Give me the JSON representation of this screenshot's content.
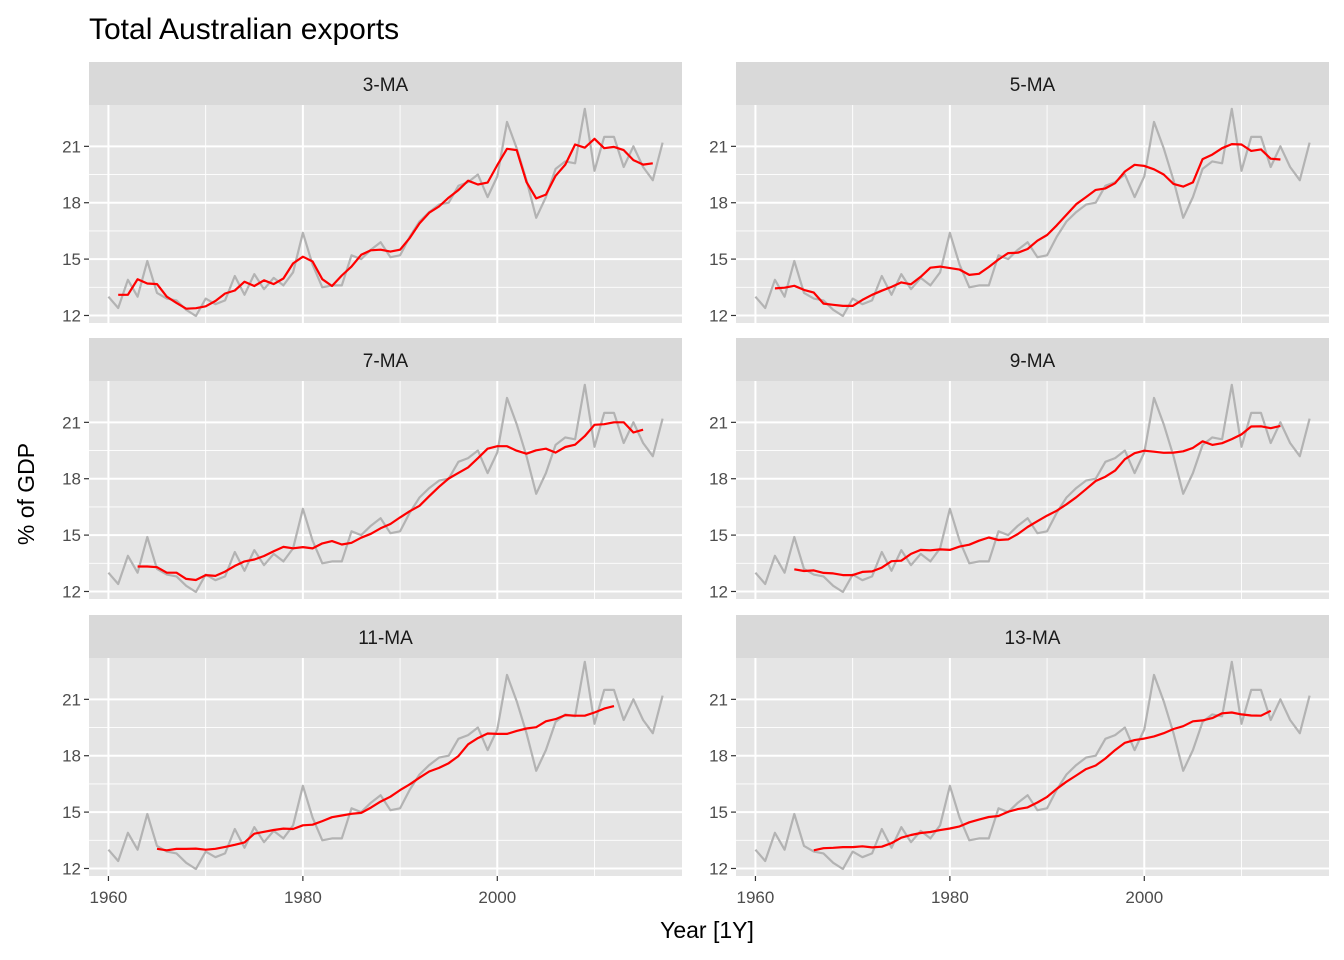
{
  "chart_data": {
    "type": "line",
    "title": "Total Australian exports",
    "xlabel": "Year [1Y]",
    "ylabel": "% of GDP",
    "xlim": [
      1958,
      2019
    ],
    "ylim": [
      11.6,
      23.2
    ],
    "x_ticks": [
      1960,
      1980,
      2000
    ],
    "y_ticks": [
      12,
      15,
      18,
      21
    ],
    "colors": {
      "exports": "#b3b3b3",
      "ma": "#ff0000",
      "panel": "#e5e5e5",
      "strip": "#d9d9d9",
      "grid": "#ffffff"
    },
    "exports": {
      "x": [
        1960,
        1961,
        1962,
        1963,
        1964,
        1965,
        1966,
        1967,
        1968,
        1969,
        1970,
        1971,
        1972,
        1973,
        1974,
        1975,
        1976,
        1977,
        1978,
        1979,
        1980,
        1981,
        1982,
        1983,
        1984,
        1985,
        1986,
        1987,
        1988,
        1989,
        1990,
        1991,
        1992,
        1993,
        1994,
        1995,
        1996,
        1997,
        1998,
        1999,
        2000,
        2001,
        2002,
        2003,
        2004,
        2005,
        2006,
        2007,
        2008,
        2009,
        2010,
        2011,
        2012,
        2013,
        2014,
        2015,
        2016,
        2017
      ],
      "values": [
        13.0,
        12.4,
        13.9,
        13.0,
        14.9,
        13.2,
        12.9,
        12.8,
        12.3,
        11.97,
        12.9,
        12.6,
        12.8,
        14.1,
        13.1,
        14.2,
        13.4,
        14.0,
        13.6,
        14.3,
        16.4,
        14.7,
        13.5,
        13.6,
        13.6,
        15.2,
        15.0,
        15.5,
        15.9,
        15.1,
        15.2,
        16.2,
        17.0,
        17.5,
        17.9,
        18.0,
        18.9,
        19.1,
        19.5,
        18.3,
        19.4,
        22.3,
        20.9,
        19.2,
        17.2,
        18.3,
        19.8,
        20.2,
        20.1,
        23.0,
        19.7,
        21.5,
        21.5,
        19.9,
        21.0,
        19.9,
        19.2,
        21.2
      ]
    },
    "panels": [
      {
        "name": "3-MA",
        "x_start": 1961,
        "values": [
          13.1,
          13.1,
          13.93,
          13.7,
          13.67,
          13.0,
          12.67,
          12.36,
          12.39,
          12.49,
          12.77,
          13.17,
          13.33,
          13.8,
          13.57,
          13.87,
          13.67,
          13.97,
          14.77,
          15.13,
          14.87,
          13.93,
          13.57,
          14.13,
          14.6,
          15.23,
          15.47,
          15.5,
          15.4,
          15.5,
          16.13,
          16.9,
          17.47,
          17.8,
          18.27,
          18.67,
          19.17,
          18.97,
          19.07,
          20.0,
          20.87,
          20.8,
          19.1,
          18.23,
          18.43,
          19.43,
          20.03,
          21.1,
          20.93,
          21.4,
          20.9,
          20.97,
          20.8,
          20.27,
          20.03,
          20.1
        ]
      },
      {
        "name": "5-MA",
        "x_start": 1962,
        "values": [
          13.44,
          13.48,
          13.58,
          13.36,
          13.22,
          12.63,
          12.57,
          12.51,
          12.51,
          12.83,
          13.1,
          13.32,
          13.52,
          13.76,
          13.66,
          14.06,
          14.54,
          14.6,
          14.52,
          14.44,
          14.16,
          14.22,
          14.58,
          14.98,
          15.32,
          15.34,
          15.54,
          15.98,
          16.28,
          16.8,
          17.36,
          17.92,
          18.3,
          18.68,
          18.76,
          19.04,
          19.66,
          20.02,
          19.96,
          19.78,
          19.5,
          19.0,
          18.86,
          19.08,
          20.32,
          20.56,
          20.9,
          21.12,
          21.1,
          20.76,
          20.84,
          20.34,
          20.3
        ]
      },
      {
        "name": "7-MA",
        "x_start": 1963,
        "values": [
          13.33,
          13.33,
          13.29,
          13.0,
          13.0,
          12.67,
          12.61,
          12.87,
          12.83,
          13.06,
          13.36,
          13.6,
          13.7,
          13.89,
          14.14,
          14.37,
          14.3,
          14.36,
          14.29,
          14.56,
          14.68,
          14.5,
          14.59,
          14.86,
          15.07,
          15.36,
          15.59,
          15.94,
          16.27,
          16.56,
          17.07,
          17.57,
          18.01,
          18.31,
          18.6,
          19.09,
          19.6,
          19.73,
          19.73,
          19.49,
          19.33,
          19.51,
          19.6,
          19.39,
          19.69,
          19.81,
          20.27,
          20.87,
          20.9,
          21.0,
          21.0,
          20.46,
          20.61
        ]
      },
      {
        "name": "9-MA",
        "x_start": 1964,
        "values": [
          13.18,
          13.09,
          13.12,
          12.99,
          12.96,
          12.87,
          12.87,
          13.04,
          13.07,
          13.27,
          13.61,
          13.64,
          14.0,
          14.21,
          14.19,
          14.24,
          14.21,
          14.39,
          14.49,
          14.7,
          14.87,
          14.74,
          14.77,
          15.06,
          15.43,
          15.74,
          16.04,
          16.3,
          16.64,
          17.01,
          17.44,
          17.88,
          18.11,
          18.43,
          19.04,
          19.36,
          19.49,
          19.44,
          19.38,
          19.39,
          19.46,
          19.64,
          19.99,
          19.8,
          19.89,
          20.11,
          20.36,
          20.78,
          20.79,
          20.69,
          20.81
        ]
      },
      {
        "name": "11-MA",
        "x_start": 1965,
        "values": [
          13.05,
          12.97,
          13.04,
          13.04,
          13.06,
          13.0,
          13.05,
          13.15,
          13.26,
          13.39,
          13.85,
          13.95,
          14.05,
          14.12,
          14.1,
          14.3,
          14.33,
          14.52,
          14.73,
          14.82,
          14.91,
          14.96,
          15.24,
          15.56,
          15.82,
          16.17,
          16.48,
          16.83,
          17.16,
          17.35,
          17.6,
          17.98,
          18.61,
          18.94,
          19.18,
          19.16,
          19.16,
          19.32,
          19.45,
          19.52,
          19.83,
          19.95,
          20.16,
          20.13,
          20.13,
          20.3,
          20.51,
          20.64
        ]
      },
      {
        "name": "13-MA",
        "x_start": 1966,
        "values": [
          12.97,
          13.08,
          13.1,
          13.14,
          13.14,
          13.18,
          13.12,
          13.16,
          13.35,
          13.64,
          13.78,
          13.89,
          13.94,
          14.04,
          14.13,
          14.24,
          14.46,
          14.6,
          14.74,
          14.79,
          15.02,
          15.16,
          15.25,
          15.51,
          15.81,
          16.24,
          16.62,
          16.95,
          17.29,
          17.48,
          17.85,
          18.3,
          18.69,
          18.83,
          18.91,
          19.03,
          19.2,
          19.42,
          19.57,
          19.83,
          19.88,
          20.0,
          20.26,
          20.3,
          20.2,
          20.14,
          20.13,
          20.39
        ]
      }
    ]
  }
}
